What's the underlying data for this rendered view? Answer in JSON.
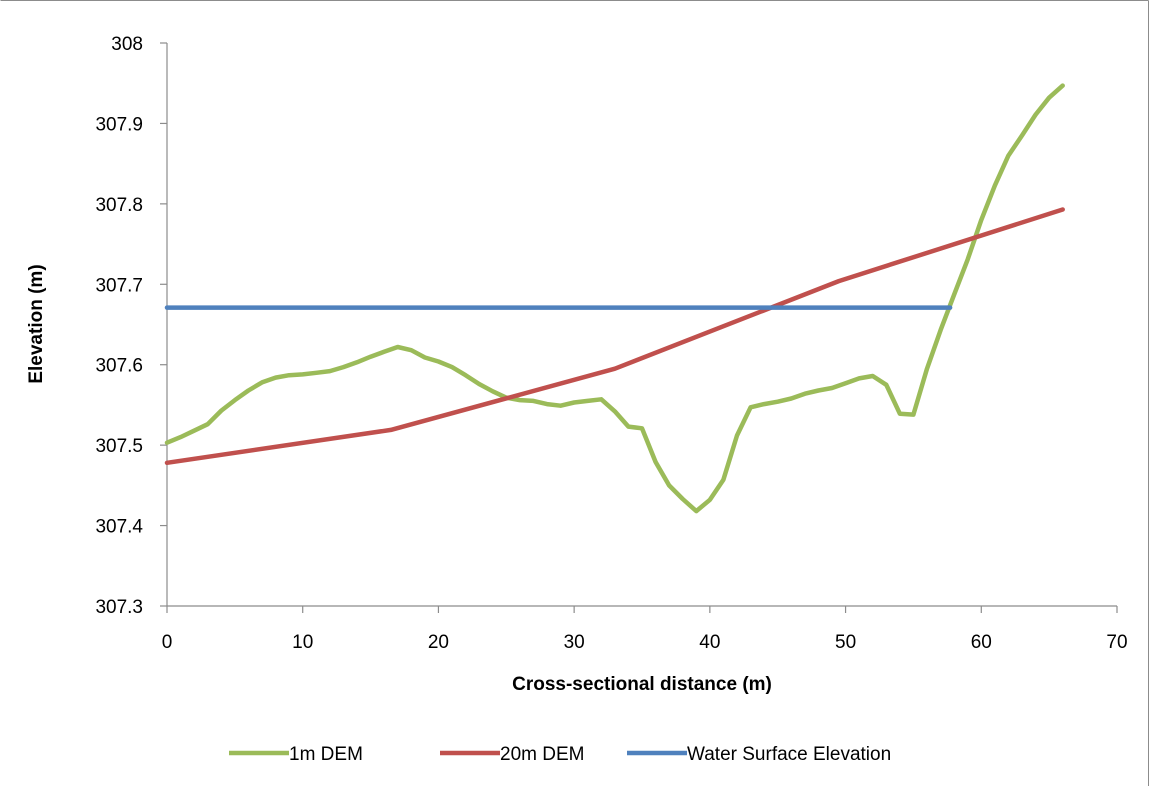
{
  "chart_data": {
    "type": "line",
    "title": "",
    "xlabel": "Cross-sectional distance (m)",
    "ylabel": "Elevation (m)",
    "xlim": [
      0,
      70
    ],
    "ylim": [
      307.3,
      308
    ],
    "x_ticks": [
      "0",
      "10",
      "20",
      "30",
      "40",
      "50",
      "60",
      "70"
    ],
    "y_ticks": [
      "307.3",
      "307.4",
      "307.5",
      "307.6",
      "307.7",
      "307.8",
      "307.9",
      "308"
    ],
    "grid": false,
    "legend_position": "bottom",
    "series": [
      {
        "name": "1m DEM",
        "color": "#9bbb59",
        "points": [
          [
            0,
            307.503
          ],
          [
            1,
            307.51
          ],
          [
            2,
            307.518
          ],
          [
            3,
            307.526
          ],
          [
            4,
            307.543
          ],
          [
            5,
            307.556
          ],
          [
            6,
            307.568
          ],
          [
            7,
            307.578
          ],
          [
            8,
            307.584
          ],
          [
            9,
            307.587
          ],
          [
            10,
            307.588
          ],
          [
            11,
            307.59
          ],
          [
            12,
            307.592
          ],
          [
            13,
            307.597
          ],
          [
            14,
            307.603
          ],
          [
            15,
            307.61
          ],
          [
            16,
            307.616
          ],
          [
            17,
            307.622
          ],
          [
            18,
            307.618
          ],
          [
            19,
            307.609
          ],
          [
            20,
            307.604
          ],
          [
            21,
            307.597
          ],
          [
            22,
            307.587
          ],
          [
            23,
            307.576
          ],
          [
            24,
            307.567
          ],
          [
            25,
            307.559
          ],
          [
            26,
            307.556
          ],
          [
            27,
            307.555
          ],
          [
            28,
            307.551
          ],
          [
            29,
            307.549
          ],
          [
            30,
            307.553
          ],
          [
            31,
            307.555
          ],
          [
            32,
            307.557
          ],
          [
            33,
            307.542
          ],
          [
            34,
            307.523
          ],
          [
            35,
            307.521
          ],
          [
            36,
            307.479
          ],
          [
            37,
            307.45
          ],
          [
            38,
            307.433
          ],
          [
            39,
            307.418
          ],
          [
            40,
            307.432
          ],
          [
            41,
            307.457
          ],
          [
            42,
            307.512
          ],
          [
            43,
            307.547
          ],
          [
            44,
            307.551
          ],
          [
            45,
            307.554
          ],
          [
            46,
            307.558
          ],
          [
            47,
            307.564
          ],
          [
            48,
            307.568
          ],
          [
            49,
            307.571
          ],
          [
            50,
            307.577
          ],
          [
            51,
            307.583
          ],
          [
            52,
            307.586
          ],
          [
            53,
            307.575
          ],
          [
            54,
            307.539
          ],
          [
            55,
            307.538
          ],
          [
            56,
            307.595
          ],
          [
            57,
            307.643
          ],
          [
            58,
            307.687
          ],
          [
            59,
            307.731
          ],
          [
            60,
            307.78
          ],
          [
            61,
            307.823
          ],
          [
            62,
            307.86
          ],
          [
            63,
            307.885
          ],
          [
            64,
            307.911
          ],
          [
            65,
            307.932
          ],
          [
            66,
            307.947
          ]
        ]
      },
      {
        "name": "20m DEM",
        "color": "#c0504d",
        "points": [
          [
            0,
            307.478
          ],
          [
            16.5,
            307.519
          ],
          [
            33,
            307.595
          ],
          [
            49.5,
            307.704
          ],
          [
            66,
            307.793
          ]
        ]
      },
      {
        "name": "Water Surface Elevation",
        "color": "#4f81bd",
        "points": [
          [
            0,
            307.671
          ],
          [
            57.7,
            307.671
          ]
        ]
      }
    ]
  }
}
